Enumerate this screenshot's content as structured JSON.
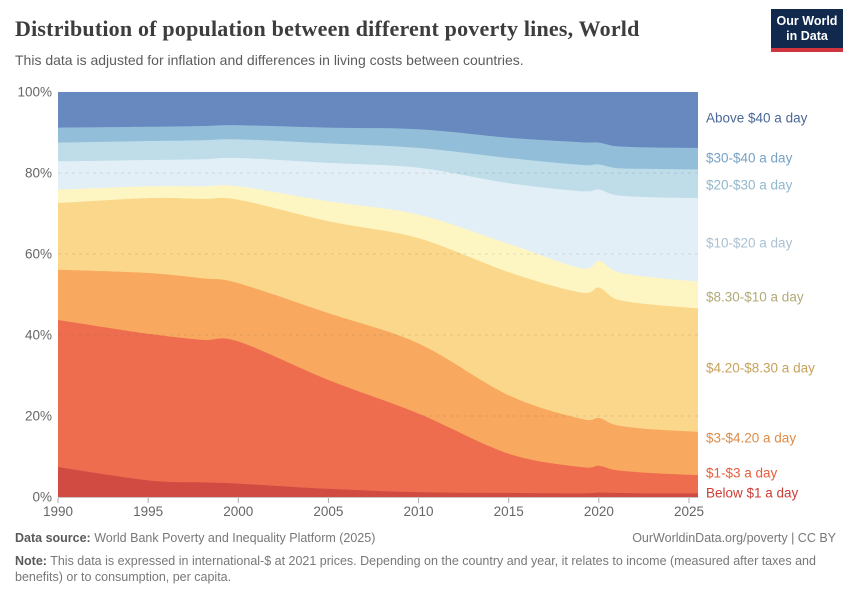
{
  "header": {
    "title": "Distribution of population between different poverty lines, World",
    "subtitle": "This data is adjusted for inflation and differences in living costs between countries.",
    "logo": {
      "line1": "Our World",
      "line2": "in Data",
      "bg_color": "#12294e",
      "accent_color": "#d0353f"
    }
  },
  "chart_data": {
    "type": "area",
    "stacked": true,
    "percent_scale": true,
    "unit": "%",
    "ylim": [
      0,
      100
    ],
    "grid": "dashed horizontal",
    "legend_position": "right",
    "x": [
      1990,
      1995,
      1998,
      2000,
      2005,
      2010,
      2015,
      2019,
      2020,
      2021,
      2023,
      2025.5
    ],
    "x_ticks": [
      1990,
      1995,
      2000,
      2005,
      2010,
      2015,
      2020,
      2025
    ],
    "y_ticks": [
      0,
      20,
      40,
      60,
      80,
      100
    ],
    "series": [
      {
        "key": "below-1",
        "name": "Below $1 a day",
        "color": "#d14b42",
        "label_color": "#c93d35",
        "values": [
          7.4,
          4.1,
          3.6,
          3.3,
          2.0,
          1.2,
          1.0,
          0.9,
          1.1,
          1.0,
          0.9,
          0.9
        ]
      },
      {
        "key": "1-3",
        "name": "$1-$3 a day",
        "color": "#ee6d4f",
        "label_color": "#e55c3c",
        "values": [
          36.3,
          36.2,
          35.2,
          35.1,
          26.9,
          19.4,
          9.7,
          6.5,
          6.6,
          5.6,
          5.0,
          4.5
        ]
      },
      {
        "key": "3-4-20",
        "name": "$3-$4.20 a day",
        "color": "#f8a95f",
        "label_color": "#dd8b47",
        "values": [
          12.4,
          15.0,
          15.2,
          14.4,
          16.5,
          17.3,
          14.4,
          11.9,
          11.8,
          11.1,
          10.8,
          10.7
        ]
      },
      {
        "key": "4-20-8-30",
        "name": "$4.20-$8.30 a day",
        "color": "#fbd78b",
        "label_color": "#c7a25c",
        "values": [
          16.5,
          18.5,
          19.6,
          20.6,
          22.7,
          26.0,
          30.4,
          31.2,
          32.2,
          31.1,
          30.8,
          30.5
        ]
      },
      {
        "key": "8-30-10",
        "name": "$8.30-$10 a day",
        "color": "#fdf6c3",
        "label_color": "#b2aa77",
        "values": [
          3.3,
          2.9,
          3.1,
          3.3,
          4.9,
          5.8,
          7.0,
          6.0,
          6.6,
          6.8,
          6.7,
          6.6
        ]
      },
      {
        "key": "10-20",
        "name": "$10-$20 a day",
        "color": "#e3eff6",
        "label_color": "#aac1d2",
        "values": [
          7.0,
          6.5,
          6.7,
          7.0,
          9.5,
          11.6,
          15.0,
          19.0,
          17.6,
          18.9,
          19.8,
          20.6
        ]
      },
      {
        "key": "20-30",
        "name": "$20-$30 a day",
        "color": "#bfdce9",
        "label_color": "#92b8cc",
        "values": [
          4.6,
          4.7,
          4.7,
          4.6,
          4.8,
          4.9,
          6.2,
          6.5,
          6.2,
          6.7,
          7.0,
          7.1
        ]
      },
      {
        "key": "30-40",
        "name": "$30-$40 a day",
        "color": "#93bed9",
        "label_color": "#76a2c5",
        "values": [
          3.7,
          3.5,
          3.5,
          3.5,
          3.9,
          4.6,
          5.0,
          5.6,
          5.4,
          5.4,
          5.3,
          5.3
        ]
      },
      {
        "key": "above-40",
        "name": "Above $40 a day",
        "color": "#6789bf",
        "label_color": "#4a6897",
        "values": [
          8.8,
          8.6,
          8.4,
          8.2,
          8.8,
          9.2,
          11.3,
          12.4,
          12.5,
          13.4,
          13.7,
          13.8
        ]
      }
    ]
  },
  "footer": {
    "source_label": "Data source:",
    "source_text": "World Bank Poverty and Inequality Platform (2025)",
    "link": "OurWorldinData.org/poverty | CC BY",
    "note_label": "Note:",
    "note_text": "This data is expressed in international-$ at 2021 prices. Depending on the country and year, it relates to income (measured after taxes and benefits) or to consumption, per capita."
  }
}
